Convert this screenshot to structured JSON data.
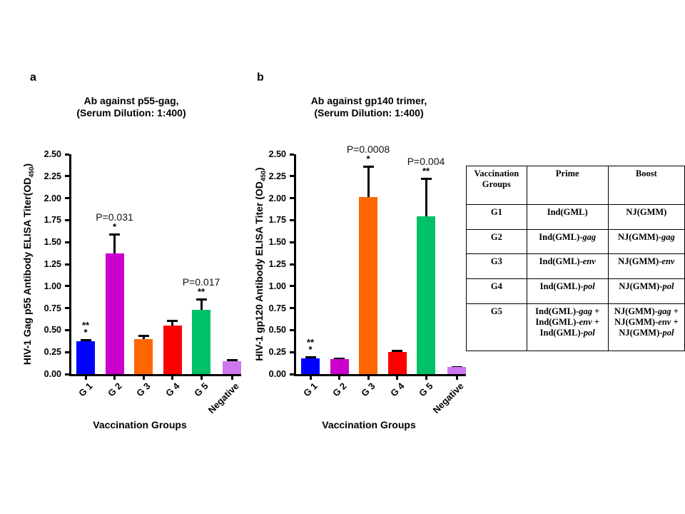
{
  "panels": [
    {
      "letter": "a"
    },
    {
      "letter": "b"
    }
  ],
  "chart_data": [
    {
      "id": "a",
      "type": "bar",
      "title": "Ab against p55-gag,",
      "subtitle": "(Serum Dilution: 1:400)",
      "xlabel": "Vaccination Groups",
      "ylabel_prefix": "HIV-1 Gag p55 Antibody ELISA Titer(OD",
      "ylabel_sub": "450",
      "ylabel_suffix": ")",
      "ylim": [
        0,
        2.5
      ],
      "grid": false,
      "legend": "none",
      "yticks": [
        "0.00",
        "0.25",
        "0.50",
        "0.75",
        "1.00",
        "1.25",
        "1.50",
        "1.75",
        "2.00",
        "2.25",
        "2.50"
      ],
      "categories": [
        "G 1",
        "G 2",
        "G 3",
        "G 4",
        "G 5",
        "Negative"
      ],
      "values": [
        0.37,
        1.37,
        0.4,
        0.55,
        0.73,
        0.15
      ],
      "errors": [
        0.03,
        0.23,
        0.05,
        0.07,
        0.13,
        0.02
      ],
      "colors": [
        "#0000ff",
        "#cc00cc",
        "#ff6600",
        "#ff0000",
        "#00c167",
        "#cc77ee"
      ],
      "stars": [
        [
          "**",
          "*"
        ],
        [
          "*"
        ],
        [],
        [],
        [
          "**"
        ],
        []
      ],
      "p_labels": [
        "",
        "P=0.031",
        "",
        "",
        "P=0.017",
        ""
      ]
    },
    {
      "id": "b",
      "type": "bar",
      "title": "Ab against gp140 trimer,",
      "subtitle": "(Serum Dilution: 1:400)",
      "xlabel": "Vaccination Groups",
      "ylabel_prefix": "HIV-1 gp120 Antibody ELISA Titer (OD",
      "ylabel_sub": "450",
      "ylabel_suffix": ")",
      "ylim": [
        0,
        2.5
      ],
      "grid": false,
      "legend": "none",
      "yticks": [
        "0.00",
        "0.25",
        "0.50",
        "0.75",
        "1.00",
        "1.25",
        "1.50",
        "1.75",
        "2.00",
        "2.25",
        "2.50"
      ],
      "categories": [
        "G 1",
        "G 2",
        "G 3",
        "G 4",
        "G 5",
        "Negative"
      ],
      "values": [
        0.18,
        0.17,
        2.01,
        0.25,
        1.79,
        0.08
      ],
      "errors": [
        0.02,
        0.02,
        0.36,
        0.03,
        0.44,
        0.01
      ],
      "colors": [
        "#0000ff",
        "#cc00cc",
        "#ff6600",
        "#ff0000",
        "#00c167",
        "#cc77ee"
      ],
      "stars": [
        [
          "**",
          "*"
        ],
        [],
        [
          "*"
        ],
        [],
        [
          "**"
        ],
        []
      ],
      "p_labels": [
        "",
        "",
        "P=0.0008",
        "",
        "P=0.004",
        ""
      ]
    }
  ],
  "table": {
    "headers": [
      [
        "Vaccination",
        "Groups"
      ],
      [
        "Prime"
      ],
      [
        "Boost"
      ]
    ],
    "rows": [
      {
        "group": "G1",
        "prime": [
          [
            {
              "t": "Ind(GML)"
            }
          ]
        ],
        "boost": [
          [
            {
              "t": "NJ(GMM)"
            }
          ]
        ]
      },
      {
        "group": "G2",
        "prime": [
          [
            {
              "t": "Ind(GML)-"
            },
            {
              "t": "gag",
              "i": true
            }
          ]
        ],
        "boost": [
          [
            {
              "t": "NJ(GMM)-"
            },
            {
              "t": "gag",
              "i": true
            }
          ]
        ]
      },
      {
        "group": "G3",
        "prime": [
          [
            {
              "t": "Ind(GML)-"
            },
            {
              "t": "env",
              "i": true
            }
          ]
        ],
        "boost": [
          [
            {
              "t": "NJ(GMM)-"
            },
            {
              "t": "env",
              "i": true
            }
          ]
        ]
      },
      {
        "group": "G4",
        "prime": [
          [
            {
              "t": "Ind(GML)-"
            },
            {
              "t": "pol",
              "i": true
            }
          ]
        ],
        "boost": [
          [
            {
              "t": "NJ(GMM)-"
            },
            {
              "t": "pol",
              "i": true
            }
          ]
        ]
      },
      {
        "group": "G5",
        "prime": [
          [
            {
              "t": "Ind(GML)-"
            },
            {
              "t": "gag",
              "i": true
            },
            {
              "t": " +"
            }
          ],
          [
            {
              "t": "Ind(GML)-"
            },
            {
              "t": "env",
              "i": true
            },
            {
              "t": " +"
            }
          ],
          [
            {
              "t": "Ind(GML)-"
            },
            {
              "t": "pol",
              "i": true
            }
          ]
        ],
        "boost": [
          [
            {
              "t": "NJ(GMM)-"
            },
            {
              "t": "gag",
              "i": true
            },
            {
              "t": " +"
            }
          ],
          [
            {
              "t": "NJ(GMM)-"
            },
            {
              "t": "env",
              "i": true
            },
            {
              "t": " +"
            }
          ],
          [
            {
              "t": "NJ(GMM)-"
            },
            {
              "t": "pol",
              "i": true
            }
          ]
        ]
      }
    ]
  }
}
